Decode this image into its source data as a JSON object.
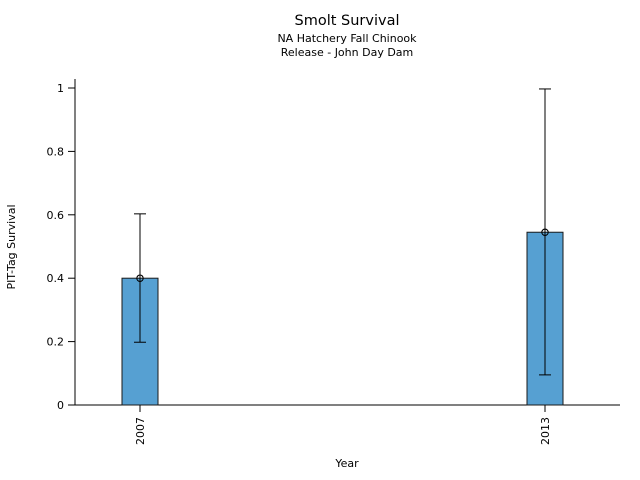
{
  "chart_data": {
    "type": "bar",
    "title": "Smolt Survival",
    "subtitle1": "NA Hatchery Fall Chinook",
    "subtitle2": "Release - John Day Dam",
    "xlabel": "Year",
    "ylabel": "PIT-Tag Survival",
    "categories": [
      "2007",
      "2013"
    ],
    "values": [
      0.4,
      0.545
    ],
    "error_low": [
      0.198,
      0.095
    ],
    "error_high": [
      0.603,
      0.997
    ],
    "ylim": [
      0,
      1
    ],
    "yticks": [
      0,
      0.2,
      0.4,
      0.6,
      0.8,
      1
    ],
    "ytick_labels": [
      "0",
      "0.2",
      "0.4",
      "0.6",
      "0.8",
      "1"
    ],
    "legend": "none",
    "grid": "off",
    "bar_color": "#56a0d2",
    "bar_edge_color": "#1a1a1a",
    "axis_color": "#000000"
  }
}
